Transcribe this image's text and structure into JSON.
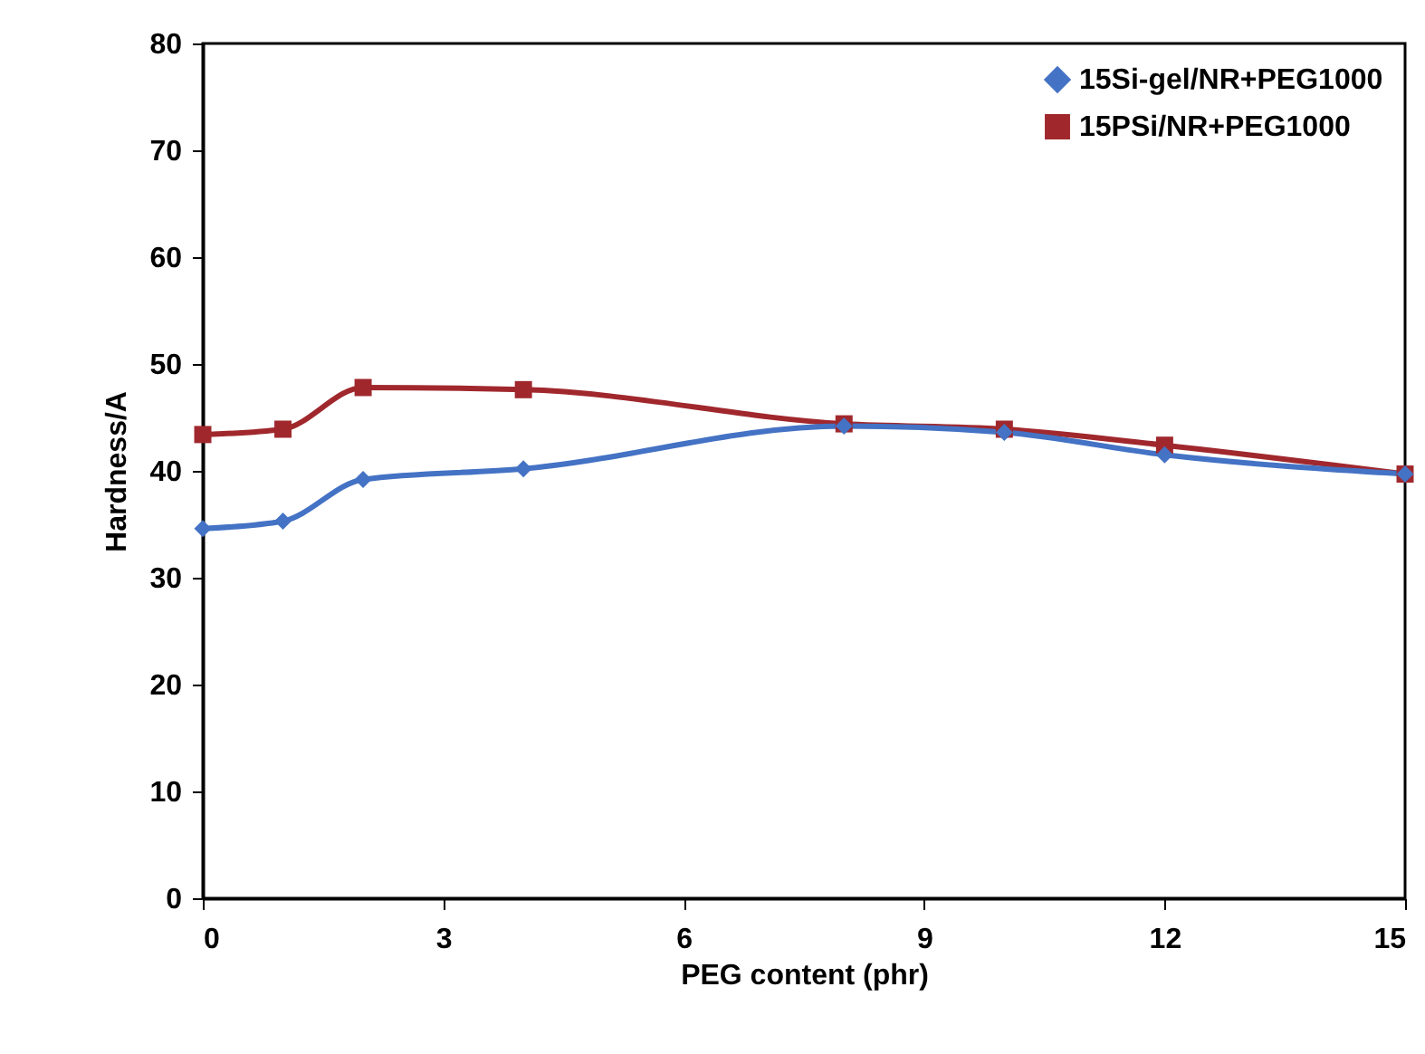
{
  "chart_data": {
    "type": "line",
    "xlabel": "PEG content (phr)",
    "ylabel": "Hardness/A",
    "x": [
      0,
      1,
      2,
      4,
      8,
      10,
      12,
      15
    ],
    "series": [
      {
        "name": "15Si-gel/NR+PEG1000",
        "color": "#4472c4",
        "marker": "diamond",
        "values": [
          34.6,
          35.3,
          39.2,
          40.2,
          44.2,
          43.6,
          41.5,
          39.7
        ]
      },
      {
        "name": "15PSi/NR+PEG1000",
        "color": "#a0282d",
        "marker": "square",
        "values": [
          43.4,
          43.9,
          47.8,
          47.6,
          44.4,
          43.9,
          42.4,
          39.7
        ]
      }
    ],
    "xlim": [
      0,
      15
    ],
    "xticks": [
      0,
      3,
      6,
      9,
      12,
      15
    ],
    "ylim": [
      0,
      80
    ],
    "yticks": [
      0,
      10,
      20,
      30,
      40,
      50,
      60,
      70,
      80
    ],
    "grid": false,
    "legend": "top right",
    "line_style": "solid"
  }
}
